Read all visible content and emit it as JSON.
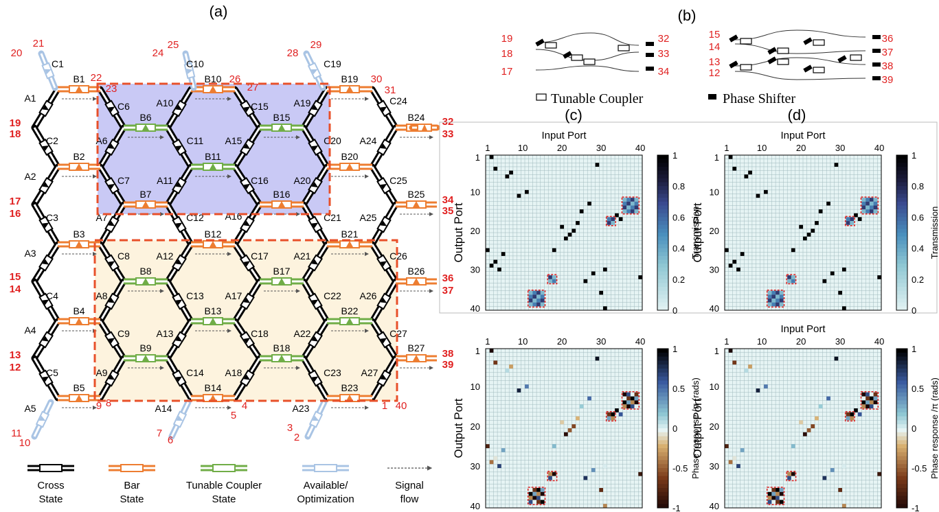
{
  "panel_labels": [
    "(a)",
    "(b)",
    "(c)",
    "(d)"
  ],
  "colors": {
    "cross": "#000000",
    "bar": "#ed7d31",
    "tunable": "#70ad47",
    "available": "#a9c4e4",
    "port_label": "#e02020",
    "region_blue": "#c9c9f5",
    "region_yellow": "#fdf3de",
    "dash": "#e8502a",
    "grid_bg": "#e6f4f4",
    "grid_line": "#9fb9bd"
  },
  "mesh": {
    "a_labels": [
      "A1",
      "A2",
      "A3",
      "A4",
      "A5",
      "A6",
      "A7",
      "A8",
      "A9",
      "A10",
      "A11",
      "A12",
      "A13",
      "A14",
      "A15",
      "A16",
      "A17",
      "A18",
      "A19",
      "A20",
      "A21",
      "A22",
      "A23",
      "A24",
      "A25",
      "A26",
      "A27"
    ],
    "c_labels": [
      "C1",
      "C2",
      "C3",
      "C4",
      "C5",
      "C6",
      "C7",
      "C8",
      "C9",
      "C10",
      "C11",
      "C12",
      "C13",
      "C14",
      "C15",
      "C16",
      "C17",
      "C18",
      "C19",
      "C20",
      "C21",
      "C22",
      "C23",
      "C24",
      "C25",
      "C26",
      "C27"
    ],
    "b_labels": [
      "B1",
      "B2",
      "B3",
      "B4",
      "B5",
      "B6",
      "B7",
      "B8",
      "B9",
      "B10",
      "B11",
      "B12",
      "B13",
      "B14",
      "B15",
      "B16",
      "B17",
      "B18",
      "B19",
      "B20",
      "B21",
      "B22",
      "B23",
      "B24",
      "B25",
      "B26",
      "B27"
    ],
    "port_numbers": [
      "1",
      "2",
      "3",
      "4",
      "5",
      "6",
      "7",
      "8",
      "9",
      "10",
      "11",
      "12",
      "13",
      "14",
      "15",
      "16",
      "17",
      "18",
      "19",
      "20",
      "21",
      "22",
      "23",
      "24",
      "25",
      "26",
      "27",
      "28",
      "29",
      "30",
      "31",
      "32",
      "33",
      "34",
      "35",
      "36",
      "37",
      "38",
      "39",
      "40"
    ]
  },
  "legend": {
    "cross": [
      "Cross",
      "State"
    ],
    "bar": [
      "Bar",
      "State"
    ],
    "tunable": [
      "Tunable Coupler",
      "State"
    ],
    "available": [
      "Available/",
      "Optimization"
    ],
    "signal": [
      "Signal",
      "flow"
    ]
  },
  "panel_b": {
    "left_ports_in": [
      "19",
      "18",
      "17"
    ],
    "left_ports_out": [
      "32",
      "33",
      "34"
    ],
    "right_ports_in": [
      "15",
      "14",
      "13",
      "12"
    ],
    "right_ports_out": [
      "36",
      "37",
      "38",
      "39"
    ],
    "tunable_coupler_label": "Tunable Coupler",
    "phase_shifter_label": "Phase Shifter"
  },
  "chart_data": [
    {
      "type": "heatmap",
      "panel": "(c)",
      "xlabel": "Input Port",
      "ylabel": "Output Port",
      "colorbar_label": "Transmission",
      "x_ticks": [
        "1",
        "10",
        "20",
        "30",
        "40"
      ],
      "y_ticks": [
        "1",
        "10",
        "20",
        "30",
        "40"
      ],
      "colorbar_ticks": [
        "1",
        "0.8",
        "0.6",
        "0.4",
        "0.2",
        "0"
      ],
      "zlim": [
        0,
        1
      ]
    },
    {
      "type": "heatmap",
      "panel": "(d)",
      "xlabel": "Input Port",
      "ylabel": "Output Port",
      "colorbar_label": "Transmission",
      "x_ticks": [
        "1",
        "10",
        "20",
        "30",
        "40"
      ],
      "y_ticks": [
        "1",
        "10",
        "20",
        "30",
        "40"
      ],
      "colorbar_ticks": [
        "1",
        "0.8",
        "0.6",
        "0.4",
        "0.2",
        "0"
      ],
      "zlim": [
        0,
        1
      ]
    },
    {
      "type": "heatmap",
      "panel": "(c) phase",
      "xlabel": "",
      "ylabel": "Output Port",
      "colorbar_label": "Phase response /π (rads)",
      "x_ticks": [
        "1",
        "10",
        "20",
        "30",
        "40"
      ],
      "y_ticks": [
        "1",
        "10",
        "20",
        "30",
        "40"
      ],
      "colorbar_ticks": [
        "1",
        "0.5",
        "0",
        "-0.5",
        "-1"
      ],
      "zlim": [
        -1,
        1
      ]
    },
    {
      "type": "heatmap",
      "panel": "(d) phase",
      "xlabel": "Input Port",
      "ylabel": "Output Port",
      "colorbar_label": "Phase response /π (rads)",
      "x_ticks": [
        "1",
        "10",
        "20",
        "30",
        "40"
      ],
      "y_ticks": [
        "1",
        "10",
        "20",
        "30",
        "40"
      ],
      "colorbar_ticks": [
        "1",
        "0.5",
        "0",
        "-0.5",
        "-1"
      ],
      "zlim": [
        -1,
        1
      ]
    }
  ]
}
